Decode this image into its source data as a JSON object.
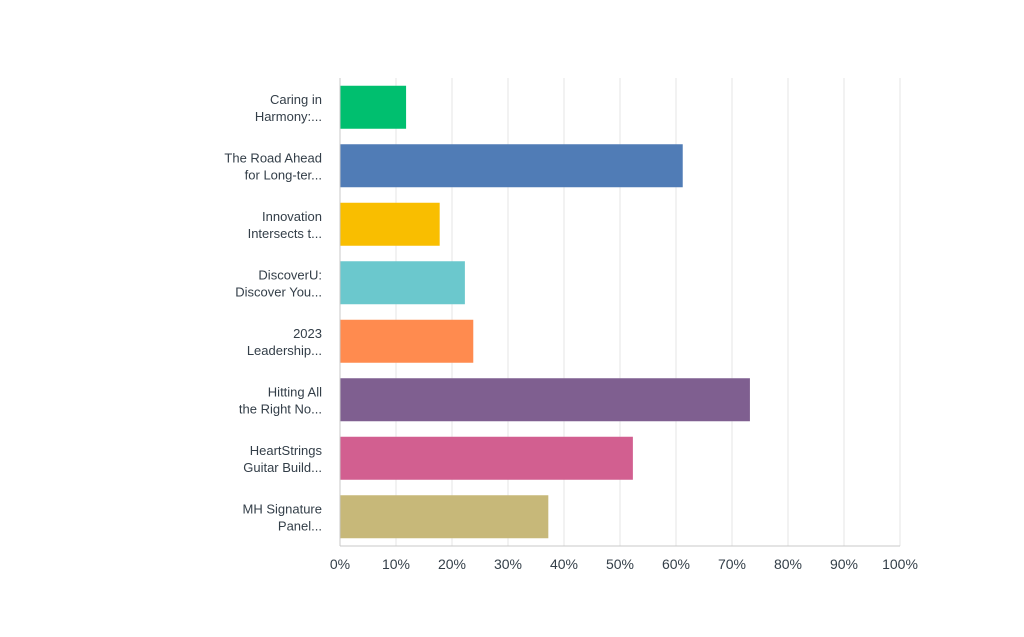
{
  "chart_data": {
    "type": "bar",
    "orientation": "horizontal",
    "categories": [
      [
        "Caring in",
        "Harmony:..."
      ],
      [
        "The Road Ahead",
        "for Long-ter..."
      ],
      [
        "Innovation",
        "Intersects t..."
      ],
      [
        "DiscoverU:",
        "Discover You..."
      ],
      [
        "2023",
        "Leadership..."
      ],
      [
        "Hitting All",
        "the Right No..."
      ],
      [
        "HeartStrings",
        "Guitar Build..."
      ],
      [
        "MH Signature",
        "Panel..."
      ]
    ],
    "values": [
      11.8,
      61.2,
      17.8,
      22.3,
      23.8,
      73.2,
      52.3,
      37.2
    ],
    "xlim": [
      0,
      100
    ],
    "x_ticks": [
      "0%",
      "10%",
      "20%",
      "30%",
      "40%",
      "50%",
      "60%",
      "70%",
      "80%",
      "90%",
      "100%"
    ],
    "grid": "vertical",
    "title": "",
    "xlabel": "",
    "ylabel": "",
    "colors": [
      "#00bf6f",
      "#507cb6",
      "#f9be00",
      "#6bc8cd",
      "#ff8b4f",
      "#7f5f90",
      "#d25f90",
      "#c7b879"
    ],
    "gridline_color": "#e6e6e6",
    "axis_color": "#c8c8c8",
    "label_color": "#333e48"
  }
}
